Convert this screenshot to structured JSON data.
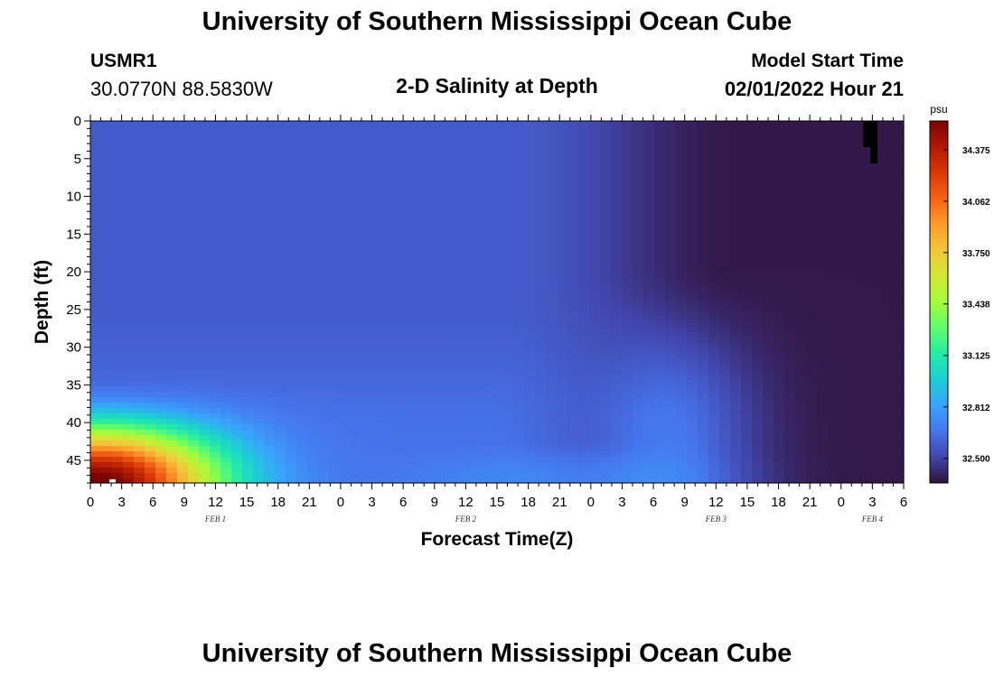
{
  "header": {
    "main_title": "University of Southern Mississippi Ocean Cube",
    "station_id": "USMR1",
    "station_coords": "30.0770N  88.5830W",
    "plot_title": "2-D Salinity at Depth",
    "start_label": "Model Start Time",
    "start_value": "02/01/2022 Hour 21",
    "footer_title": "University of Southern Mississippi Ocean Cube"
  },
  "chart_data": {
    "type": "heatmap",
    "title": "2-D Salinity at Depth",
    "xlabel": "Forecast Time(Z)",
    "ylabel": "Depth (ft)",
    "y_ticks": [
      "0",
      "5",
      "10",
      "15",
      "20",
      "25",
      "30",
      "35",
      "40",
      "45"
    ],
    "ylim": [
      0,
      48
    ],
    "x_ticks": [
      "0",
      "3",
      "6",
      "9",
      "12",
      "15",
      "18",
      "21",
      "0",
      "3",
      "6",
      "9",
      "12",
      "15",
      "18",
      "21",
      "0",
      "3",
      "6",
      "9",
      "12",
      "15",
      "18",
      "21",
      "0",
      "3",
      "6"
    ],
    "x_day_labels": [
      {
        "label": "FEB 1",
        "hour": 12
      },
      {
        "label": "FEB 2",
        "hour": 36
      },
      {
        "label": "FEB 3",
        "hour": 60
      },
      {
        "label": "FEB 4",
        "hour": 75
      }
    ],
    "x_range_hours": [
      0,
      78
    ],
    "colorbar": {
      "unit": "psu",
      "range": [
        32.35,
        34.55
      ],
      "ticks": [
        "34.375",
        "34.062",
        "33.750",
        "33.438",
        "33.125",
        "32.812",
        "32.500"
      ],
      "colors": [
        "#30123b",
        "#4145ab",
        "#4675ed",
        "#39a2fc",
        "#1bcfd4",
        "#24eca6",
        "#61fc6c",
        "#a4fc3b",
        "#d1e834",
        "#f3c63a",
        "#fe9b2d",
        "#f36315",
        "#d93806",
        "#b11901",
        "#7a0402"
      ]
    },
    "fields": [
      {
        "note": "surface layer",
        "depth_range": [
          0,
          48
        ],
        "time_range": [
          0,
          78
        ],
        "value_range": [
          32.35,
          32.6
        ]
      },
      {
        "note": "bottom high-salinity tongue",
        "depth_range": [
          36,
          48
        ],
        "time_range": [
          0,
          20
        ],
        "value_range": [
          32.8,
          34.5
        ]
      },
      {
        "note": "mid-period bottom intrusion",
        "depth_range": [
          20,
          48
        ],
        "time_range": [
          47,
          66
        ],
        "value_range": [
          32.6,
          32.85
        ]
      }
    ],
    "grid": false,
    "legend": "colorbar-right"
  }
}
